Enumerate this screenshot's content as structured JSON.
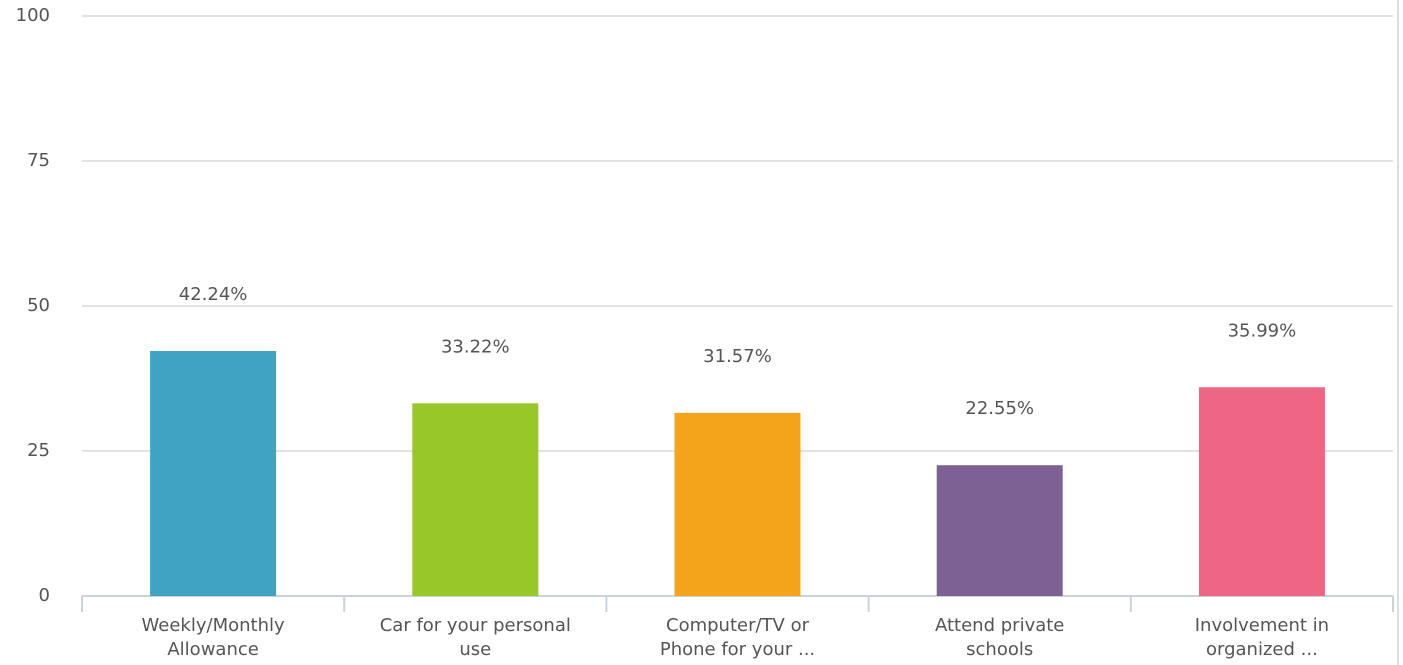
{
  "chart_data": {
    "type": "bar",
    "categories": [
      "Weekly/Monthly\nAllowance",
      "Car for your personal\nuse",
      "Computer/TV or\nPhone for your ...",
      "Attend private\nschools",
      "Involvement in\norganized ..."
    ],
    "values": [
      42.24,
      33.22,
      31.57,
      22.55,
      35.99
    ],
    "value_labels": [
      "42.24%",
      "33.22%",
      "31.57%",
      "22.55%",
      "35.99%"
    ],
    "colors": [
      "#40a3c2",
      "#97c728",
      "#f4a41b",
      "#7d6194",
      "#ef6584"
    ],
    "ylim": [
      0,
      100
    ],
    "yticks": [
      0,
      25,
      50,
      75,
      100
    ],
    "grid": true
  }
}
